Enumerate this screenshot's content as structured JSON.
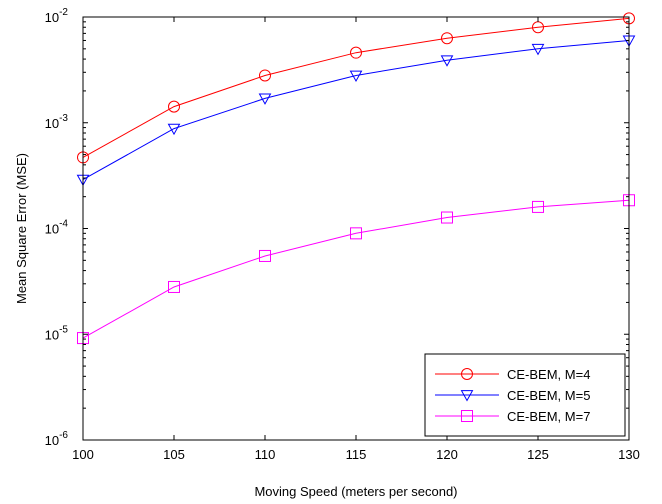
{
  "chart_data": {
    "type": "line",
    "xlabel": "Moving Speed (meters per second)",
    "ylabel": "Mean Square Error (MSE)",
    "xlim": [
      100,
      130
    ],
    "ylim": [
      1e-06,
      0.01
    ],
    "yscale": "log",
    "grid": false,
    "legend_position": "bottom-right",
    "x_ticks": [
      {
        "value": 100,
        "label": "100"
      },
      {
        "value": 105,
        "label": "105"
      },
      {
        "value": 110,
        "label": "110"
      },
      {
        "value": 115,
        "label": "115"
      },
      {
        "value": 120,
        "label": "120"
      },
      {
        "value": 125,
        "label": "125"
      },
      {
        "value": 130,
        "label": "130"
      }
    ],
    "y_ticks": [
      {
        "value": 1e-06,
        "base": "10",
        "exp": "-6"
      },
      {
        "value": 1e-05,
        "base": "10",
        "exp": "-5"
      },
      {
        "value": 0.0001,
        "base": "10",
        "exp": "-4"
      },
      {
        "value": 0.001,
        "base": "10",
        "exp": "-3"
      },
      {
        "value": 0.01,
        "base": "10",
        "exp": "-2"
      }
    ],
    "x": [
      100,
      105,
      110,
      115,
      120,
      125,
      130
    ],
    "series": [
      {
        "name": "CE-BEM, M=4",
        "color": "#ff0000",
        "marker": "circle",
        "values": [
          0.00047,
          0.00142,
          0.0028,
          0.0046,
          0.0063,
          0.008,
          0.0097
        ]
      },
      {
        "name": "CE-BEM, M=5",
        "color": "#0000ff",
        "marker": "triangle-down",
        "values": [
          0.00029,
          0.00088,
          0.0017,
          0.0028,
          0.0039,
          0.005,
          0.006
        ]
      },
      {
        "name": "CE-BEM, M=7",
        "color": "#ff00ff",
        "marker": "square",
        "values": [
          9.2e-06,
          2.8e-05,
          5.5e-05,
          9e-05,
          0.000127,
          0.00016,
          0.000185
        ]
      }
    ]
  }
}
